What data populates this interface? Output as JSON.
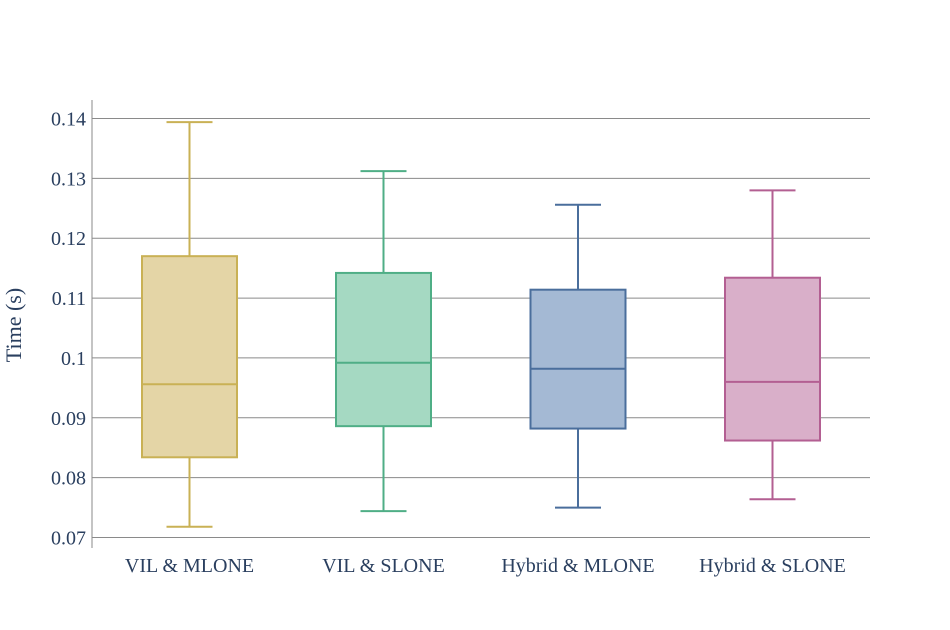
{
  "chart_data": {
    "type": "box",
    "ylabel": "Time (s)",
    "ylim": [
      0.07,
      0.143
    ],
    "yticks": [
      0.07,
      0.08,
      0.09,
      0.1,
      0.11,
      0.12,
      0.13,
      0.14
    ],
    "ytick_labels": [
      "0.07",
      "0.08",
      "0.09",
      "0.1",
      "0.11",
      "0.12",
      "0.13",
      "0.14"
    ],
    "grid": true,
    "categories": [
      "VIL & MLONE",
      "VIL & SLONE",
      "Hybrid & MLONE",
      "Hybrid & SLONE"
    ],
    "boxes": [
      {
        "category": "VIL & MLONE",
        "min": 0.0718,
        "q1": 0.0834,
        "median": 0.0956,
        "q3": 0.117,
        "max": 0.1394,
        "color": "#c9b155",
        "fill": "#e4d5a6"
      },
      {
        "category": "VIL & SLONE",
        "min": 0.0744,
        "q1": 0.0886,
        "median": 0.0992,
        "q3": 0.1142,
        "max": 0.1312,
        "color": "#4fae86",
        "fill": "#a5d9c2"
      },
      {
        "category": "Hybrid & MLONE",
        "min": 0.075,
        "q1": 0.0882,
        "median": 0.0982,
        "q3": 0.1114,
        "max": 0.1256,
        "color": "#4a6e9c",
        "fill": "#a4b9d4"
      },
      {
        "category": "Hybrid & SLONE",
        "min": 0.0764,
        "q1": 0.0862,
        "median": 0.096,
        "q3": 0.1134,
        "max": 0.128,
        "color": "#b35f92",
        "fill": "#d9afc9"
      }
    ]
  }
}
